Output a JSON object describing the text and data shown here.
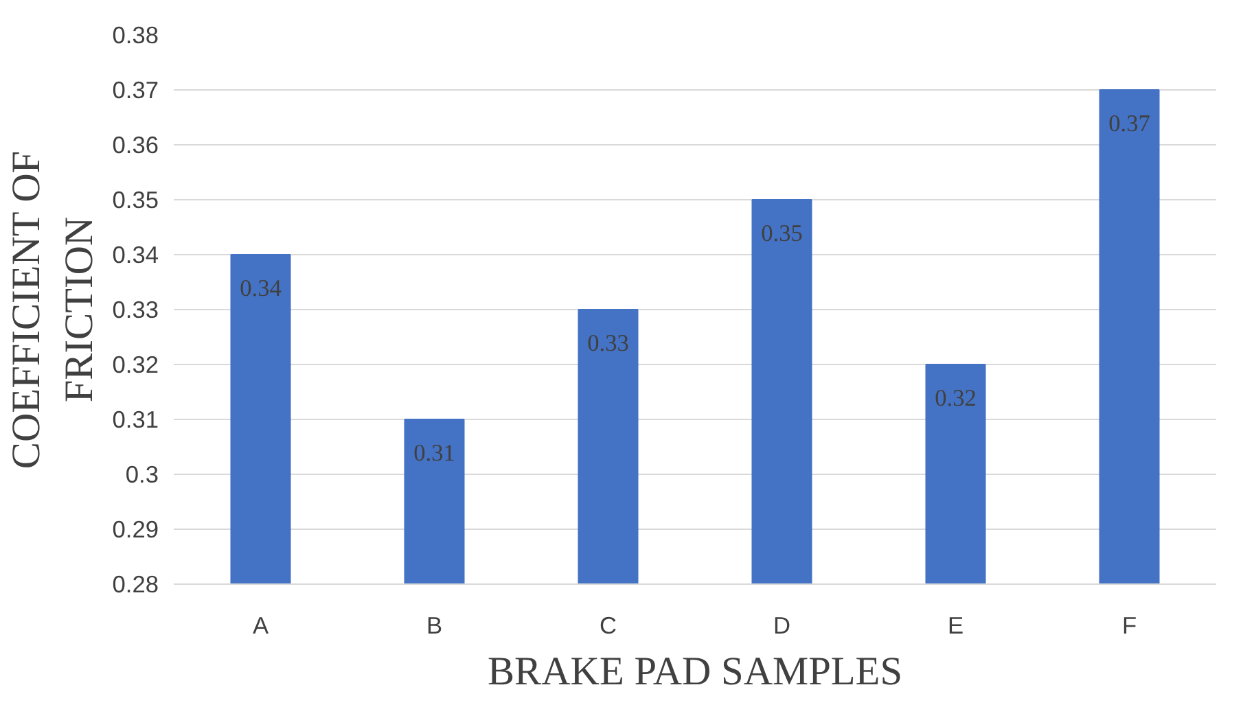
{
  "chart_data": {
    "type": "bar",
    "xlabel": "BRAKE PAD SAMPLES",
    "ylabel": "COEFFICIENT OF FRICTION",
    "categories": [
      "A",
      "B",
      "C",
      "D",
      "E",
      "F"
    ],
    "values": [
      0.34,
      0.31,
      0.33,
      0.35,
      0.32,
      0.37
    ],
    "color": "#4472c4",
    "ylim": [
      0.28,
      0.38
    ],
    "yticks": [
      0.28,
      0.29,
      0.3,
      0.31,
      0.32,
      0.33,
      0.34,
      0.35,
      0.36,
      0.37,
      0.38
    ],
    "grid": "y",
    "data_labels": true
  }
}
